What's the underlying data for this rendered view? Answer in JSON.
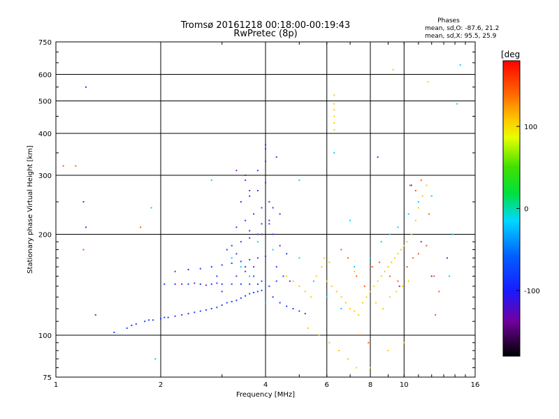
{
  "chart_data": {
    "type": "scatter",
    "title": "Tromsø 20161218 00:18:00-00:19:43",
    "subtitle": "RwPretec (8p)",
    "xlabel": "Frequency [MHz]",
    "ylabel": "Stationary phase Virtual Height [km]",
    "x_scale": "log",
    "y_scale": "log",
    "xlim": [
      1,
      16
    ],
    "ylim": [
      75,
      750
    ],
    "x_ticks": [
      1,
      2,
      4,
      6,
      8,
      10,
      16
    ],
    "x_tick_labels": [
      "1",
      "2",
      "4",
      "6",
      "8",
      "10",
      "16"
    ],
    "y_ticks": [
      75,
      100,
      200,
      300,
      400,
      500,
      600,
      750
    ],
    "y_tick_labels": [
      "75",
      "100",
      "200",
      "300",
      "400",
      "500",
      "600",
      "750"
    ],
    "grid": true,
    "phases": {
      "title": "Phases",
      "line_o": "mean, sd,O: -87.6, 21.2",
      "line_x": "mean, sd,X:  95.5, 25.9"
    },
    "colorbar": {
      "label": "[deg",
      "range": [
        -180,
        180
      ],
      "ticks": [
        -100,
        0,
        100
      ],
      "tick_labels": [
        "-100",
        "0",
        "100"
      ]
    },
    "series": [
      {
        "phase_group": "O",
        "color": "#1e3cff",
        "points": [
          [
            1.47,
            102
          ],
          [
            1.6,
            105
          ],
          [
            1.65,
            107
          ],
          [
            1.7,
            108
          ],
          [
            1.8,
            110
          ],
          [
            1.85,
            111
          ],
          [
            1.9,
            111
          ],
          [
            2.0,
            112
          ],
          [
            2.05,
            113
          ],
          [
            2.1,
            113
          ],
          [
            2.2,
            114
          ],
          [
            2.3,
            115
          ],
          [
            2.4,
            116
          ],
          [
            2.5,
            117
          ],
          [
            2.6,
            118
          ],
          [
            2.7,
            119
          ],
          [
            2.8,
            120
          ],
          [
            2.9,
            121
          ],
          [
            3.0,
            123
          ],
          [
            3.1,
            125
          ],
          [
            3.2,
            126
          ],
          [
            3.3,
            127
          ],
          [
            3.4,
            129
          ],
          [
            3.5,
            131
          ],
          [
            3.6,
            133
          ],
          [
            3.7,
            134
          ],
          [
            3.8,
            135
          ],
          [
            3.9,
            136
          ],
          [
            2.05,
            142
          ],
          [
            2.2,
            142
          ],
          [
            2.4,
            142
          ],
          [
            2.6,
            142
          ],
          [
            2.8,
            142
          ],
          [
            3.0,
            142
          ],
          [
            3.2,
            142
          ],
          [
            3.4,
            142
          ],
          [
            3.6,
            142
          ],
          [
            3.8,
            142
          ],
          [
            2.2,
            155
          ],
          [
            2.4,
            157
          ],
          [
            2.6,
            158
          ],
          [
            2.8,
            160
          ],
          [
            3.0,
            162
          ],
          [
            3.2,
            164
          ],
          [
            3.4,
            166
          ],
          [
            3.6,
            168
          ],
          [
            3.8,
            170
          ],
          [
            4.0,
            172
          ],
          [
            3.2,
            185
          ],
          [
            3.4,
            190
          ],
          [
            3.6,
            195
          ],
          [
            3.8,
            200
          ],
          [
            3.3,
            210
          ],
          [
            3.5,
            220
          ],
          [
            3.7,
            230
          ],
          [
            3.9,
            240
          ],
          [
            3.4,
            250
          ],
          [
            3.6,
            260
          ],
          [
            3.8,
            270
          ],
          [
            4.0,
            285
          ],
          [
            3.5,
            300
          ],
          [
            3.8,
            310
          ],
          [
            4.0,
            330
          ],
          [
            4.0,
            360
          ],
          [
            4.2,
            200
          ],
          [
            4.4,
            185
          ],
          [
            4.6,
            175
          ],
          [
            4.3,
            160
          ],
          [
            4.5,
            150
          ],
          [
            4.7,
            145
          ],
          [
            4.2,
            130
          ],
          [
            4.4,
            125
          ],
          [
            4.6,
            122
          ],
          [
            4.8,
            120
          ],
          [
            5.0,
            118
          ],
          [
            5.2,
            116
          ],
          [
            4.1,
            250
          ],
          [
            4.2,
            240
          ],
          [
            4.4,
            230
          ],
          [
            3.1,
            180
          ],
          [
            3.3,
            175
          ],
          [
            3.5,
            160
          ],
          [
            3.7,
            150
          ],
          [
            3.9,
            145
          ],
          [
            4.1,
            140
          ],
          [
            4.3,
            145
          ],
          [
            2.9,
            150
          ],
          [
            3.0,
            135
          ],
          [
            3.6,
            205
          ],
          [
            3.9,
            215
          ],
          [
            4.1,
            220
          ],
          [
            1.22,
            550
          ],
          [
            1.2,
            250
          ]
        ]
      },
      {
        "phase_group": "X",
        "color": "#ffc800",
        "points": [
          [
            4.6,
            150
          ],
          [
            4.8,
            145
          ],
          [
            5.0,
            140
          ],
          [
            5.2,
            135
          ],
          [
            5.4,
            130
          ],
          [
            5.6,
            150
          ],
          [
            5.8,
            160
          ],
          [
            6.0,
            145
          ],
          [
            6.2,
            140
          ],
          [
            6.4,
            135
          ],
          [
            6.6,
            130
          ],
          [
            6.8,
            125
          ],
          [
            7.0,
            120
          ],
          [
            7.2,
            118
          ],
          [
            7.4,
            115
          ],
          [
            7.6,
            125
          ],
          [
            7.8,
            130
          ],
          [
            8.0,
            135
          ],
          [
            8.2,
            140
          ],
          [
            8.4,
            145
          ],
          [
            8.6,
            150
          ],
          [
            8.8,
            155
          ],
          [
            9.0,
            160
          ],
          [
            9.2,
            165
          ],
          [
            9.4,
            170
          ],
          [
            9.6,
            175
          ],
          [
            9.8,
            180
          ],
          [
            10.0,
            185
          ],
          [
            10.2,
            190
          ],
          [
            10.5,
            200
          ],
          [
            10.8,
            220
          ],
          [
            11.0,
            240
          ],
          [
            11.3,
            260
          ],
          [
            11.6,
            280
          ],
          [
            6.3,
            410
          ],
          [
            6.3,
            430
          ],
          [
            6.3,
            450
          ],
          [
            6.3,
            470
          ],
          [
            6.3,
            490
          ],
          [
            6.3,
            520
          ],
          [
            9.3,
            620
          ],
          [
            11.7,
            570
          ],
          [
            5.9,
            170
          ],
          [
            6.1,
            165
          ],
          [
            7.2,
            155
          ],
          [
            8.3,
            125
          ],
          [
            8.7,
            120
          ],
          [
            9.1,
            130
          ],
          [
            9.5,
            135
          ],
          [
            9.9,
            140
          ],
          [
            10.3,
            145
          ],
          [
            5.3,
            105
          ],
          [
            5.7,
            100
          ],
          [
            6.1,
            95
          ],
          [
            6.5,
            90
          ],
          [
            6.9,
            85
          ],
          [
            7.3,
            80
          ],
          [
            8.0,
            80
          ],
          [
            9.0,
            90
          ],
          [
            10.0,
            95
          ]
        ]
      },
      {
        "phase_group": "X-high",
        "color": "#ff5a00",
        "points": [
          [
            6.6,
            180
          ],
          [
            6.9,
            170
          ],
          [
            7.3,
            150
          ],
          [
            7.7,
            140
          ],
          [
            8.1,
            160
          ],
          [
            8.5,
            165
          ],
          [
            9.1,
            150
          ],
          [
            9.6,
            145
          ],
          [
            10.2,
            160
          ],
          [
            10.6,
            170
          ],
          [
            11.0,
            175
          ],
          [
            11.6,
            185
          ],
          [
            12.2,
            150
          ],
          [
            12.6,
            135
          ],
          [
            10.4,
            280
          ],
          [
            10.8,
            270
          ],
          [
            11.2,
            290
          ],
          [
            11.8,
            230
          ],
          [
            7.4,
            100
          ],
          [
            7.9,
            95
          ],
          [
            1.14,
            320
          ],
          [
            1.05,
            320
          ],
          [
            1.2,
            180
          ],
          [
            1.75,
            210
          ],
          [
            12.3,
            115
          ]
        ]
      },
      {
        "phase_group": "cyan",
        "color": "#00d0ff",
        "points": [
          [
            3.2,
            170
          ],
          [
            3.4,
            160
          ],
          [
            3.6,
            150
          ],
          [
            3.8,
            190
          ],
          [
            4.0,
            125
          ],
          [
            4.2,
            180
          ],
          [
            5.0,
            170
          ],
          [
            5.5,
            145
          ],
          [
            6.0,
            130
          ],
          [
            6.6,
            120
          ],
          [
            7.2,
            160
          ],
          [
            8.0,
            170
          ],
          [
            8.6,
            190
          ],
          [
            9.1,
            200
          ],
          [
            9.6,
            210
          ],
          [
            10.3,
            230
          ],
          [
            11.0,
            250
          ],
          [
            12.0,
            260
          ],
          [
            13.5,
            150
          ],
          [
            13.8,
            200
          ],
          [
            14.5,
            640
          ],
          [
            14.2,
            490
          ],
          [
            1.88,
            240
          ],
          [
            1.93,
            85
          ],
          [
            2.8,
            290
          ],
          [
            5.0,
            290
          ],
          [
            6.3,
            350
          ],
          [
            7.0,
            220
          ]
        ]
      },
      {
        "phase_group": "violet",
        "color": "#7a1ed0",
        "points": [
          [
            2.3,
            142
          ],
          [
            2.5,
            143
          ],
          [
            2.7,
            141
          ],
          [
            2.9,
            143
          ],
          [
            3.3,
            150
          ],
          [
            3.5,
            155
          ],
          [
            3.7,
            160
          ],
          [
            3.9,
            200
          ],
          [
            4.1,
            215
          ],
          [
            3.3,
            310
          ],
          [
            3.5,
            290
          ],
          [
            3.6,
            270
          ],
          [
            4.0,
            370
          ],
          [
            4.3,
            340
          ],
          [
            8.4,
            340
          ],
          [
            9.7,
            140
          ],
          [
            10.5,
            280
          ],
          [
            11.2,
            190
          ],
          [
            12.0,
            150
          ],
          [
            13.3,
            170
          ],
          [
            1.3,
            115
          ],
          [
            1.22,
            210
          ]
        ]
      }
    ]
  }
}
